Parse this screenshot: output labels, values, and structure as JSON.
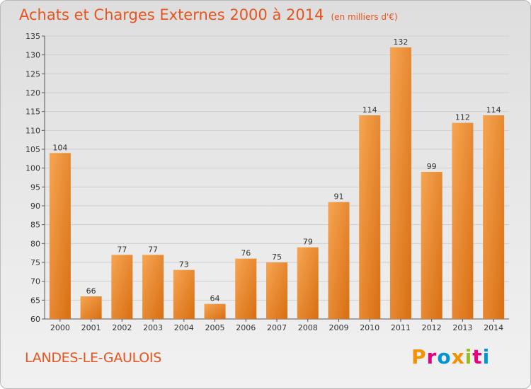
{
  "header": {
    "title": "Achats et Charges Externes 2000 à 2014",
    "subtitle": "(en milliers d'€)"
  },
  "footer": {
    "location": "LANDES-LE-GAULOIS",
    "logo": "Proxiti",
    "logo_colors": [
      "#f39200",
      "#e6007e",
      "#0096d6",
      "#f39200",
      "#95c11f",
      "#e6007e",
      "#0096d6"
    ]
  },
  "colors": {
    "bar_light": "#f6a553",
    "bar_dark": "#d86e12",
    "grid": "#cfcfcf",
    "accent": "#e8541e"
  },
  "chart_data": {
    "type": "bar",
    "title": "Achats et Charges Externes 2000 à 2014",
    "subtitle": "(en milliers d'€)",
    "categories": [
      "2000",
      "2001",
      "2002",
      "2003",
      "2004",
      "2005",
      "2006",
      "2007",
      "2008",
      "2009",
      "2010",
      "2011",
      "2012",
      "2013",
      "2014"
    ],
    "values": [
      104,
      66,
      77,
      77,
      73,
      64,
      76,
      75,
      79,
      91,
      114,
      132,
      99,
      112,
      114
    ],
    "ylim": [
      60,
      135
    ],
    "yticks": [
      60,
      65,
      70,
      75,
      80,
      85,
      90,
      95,
      100,
      105,
      110,
      115,
      120,
      125,
      130,
      135
    ],
    "grid": true,
    "legend": "none"
  }
}
